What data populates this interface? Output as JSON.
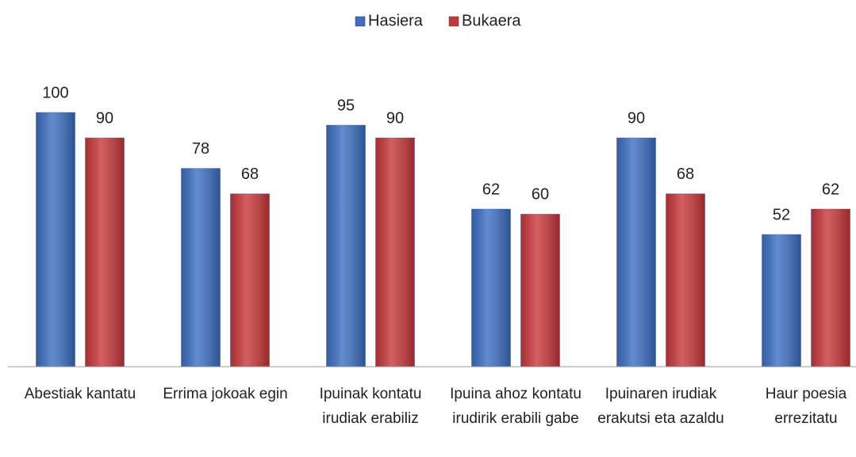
{
  "chart_data": {
    "type": "bar",
    "categories": [
      "Abestiak kantatu",
      "Errima jokoak egin",
      "Ipuinak kontatu irudiak erabiliz",
      "Ipuina ahoz kontatu irudirik erabili gabe",
      "Ipuinaren irudiak erakutsi eta azaldu",
      "Haur poesia errezitatu"
    ],
    "series": [
      {
        "name": "Hasiera",
        "color": "#3c6fc4",
        "values": [
          100,
          78,
          95,
          62,
          90,
          52
        ]
      },
      {
        "name": "Bukaera",
        "color": "#c8373a",
        "values": [
          90,
          68,
          90,
          60,
          68,
          62
        ]
      }
    ],
    "ylim": [
      0,
      100
    ],
    "legend": "top"
  }
}
